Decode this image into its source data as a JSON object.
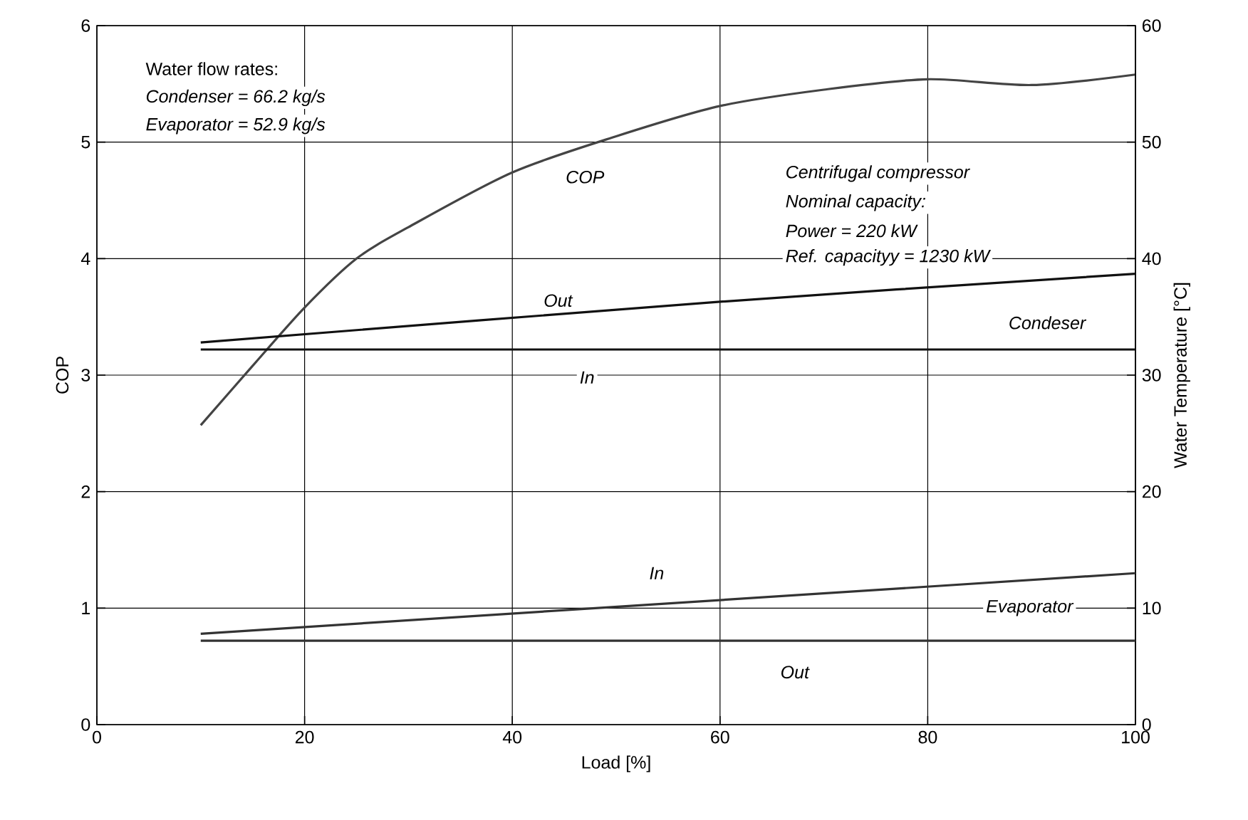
{
  "chart_data": {
    "type": "line",
    "xlabel": "Load [%]",
    "ylabel": "COP",
    "y2label": "Water Temperature [°C]",
    "xlim": [
      0,
      100
    ],
    "xticks": [
      0,
      20,
      40,
      60,
      80,
      100
    ],
    "ylim": [
      0,
      6
    ],
    "yticks": [
      0,
      1,
      2,
      3,
      4,
      5,
      6
    ],
    "y2lim": [
      0,
      60
    ],
    "y2ticks": [
      0,
      10,
      20,
      30,
      40,
      50,
      60
    ],
    "grid": true,
    "marker": "none",
    "line_style": "solid",
    "series": [
      {
        "color": "#444444",
        "x": [
          10,
          15,
          20,
          25,
          30,
          40,
          50,
          60,
          70,
          80,
          90,
          100
        ],
        "values": [
          2.57,
          3.08,
          3.58,
          4.0,
          4.27,
          4.74,
          5.05,
          5.31,
          5.45,
          5.54,
          5.49,
          5.58
        ]
      },
      {
        "color": "#111111",
        "axis": "y2",
        "x": [
          10,
          60,
          100
        ],
        "values": [
          32.8,
          36.3,
          38.7
        ]
      },
      {
        "color": "#111111",
        "axis": "y2",
        "x": [
          10,
          100
        ],
        "values": [
          32.2,
          32.2
        ]
      },
      {
        "color": "#333333",
        "axis": "y2",
        "x": [
          10,
          100
        ],
        "values": [
          7.8,
          13.0
        ]
      },
      {
        "color": "#333333",
        "axis": "y2",
        "x": [
          10,
          100
        ],
        "values": [
          7.2,
          7.2
        ]
      }
    ],
    "annotations": [
      "Water flow rates:",
      "Condenser = 66.2 kg/s",
      "Evaporator = 52.9 kg/s",
      "Centrifugal compressor",
      "Nominal capacity:",
      "Power = 220 kW",
      "Ref. capacityy = 1230 kW",
      {
        "text": "COP",
        "x": 47,
        "y": 4.7
      },
      {
        "text": "Out",
        "x": 44.4,
        "y": 3.64
      },
      {
        "text": "In",
        "x": 47.2,
        "y": 2.98
      },
      "Condeser",
      {
        "text": "In",
        "x": 53.9,
        "y": 1.3
      },
      "Evaporator",
      {
        "text": "Out",
        "x": 67.2,
        "y": 0.45
      }
    ]
  }
}
